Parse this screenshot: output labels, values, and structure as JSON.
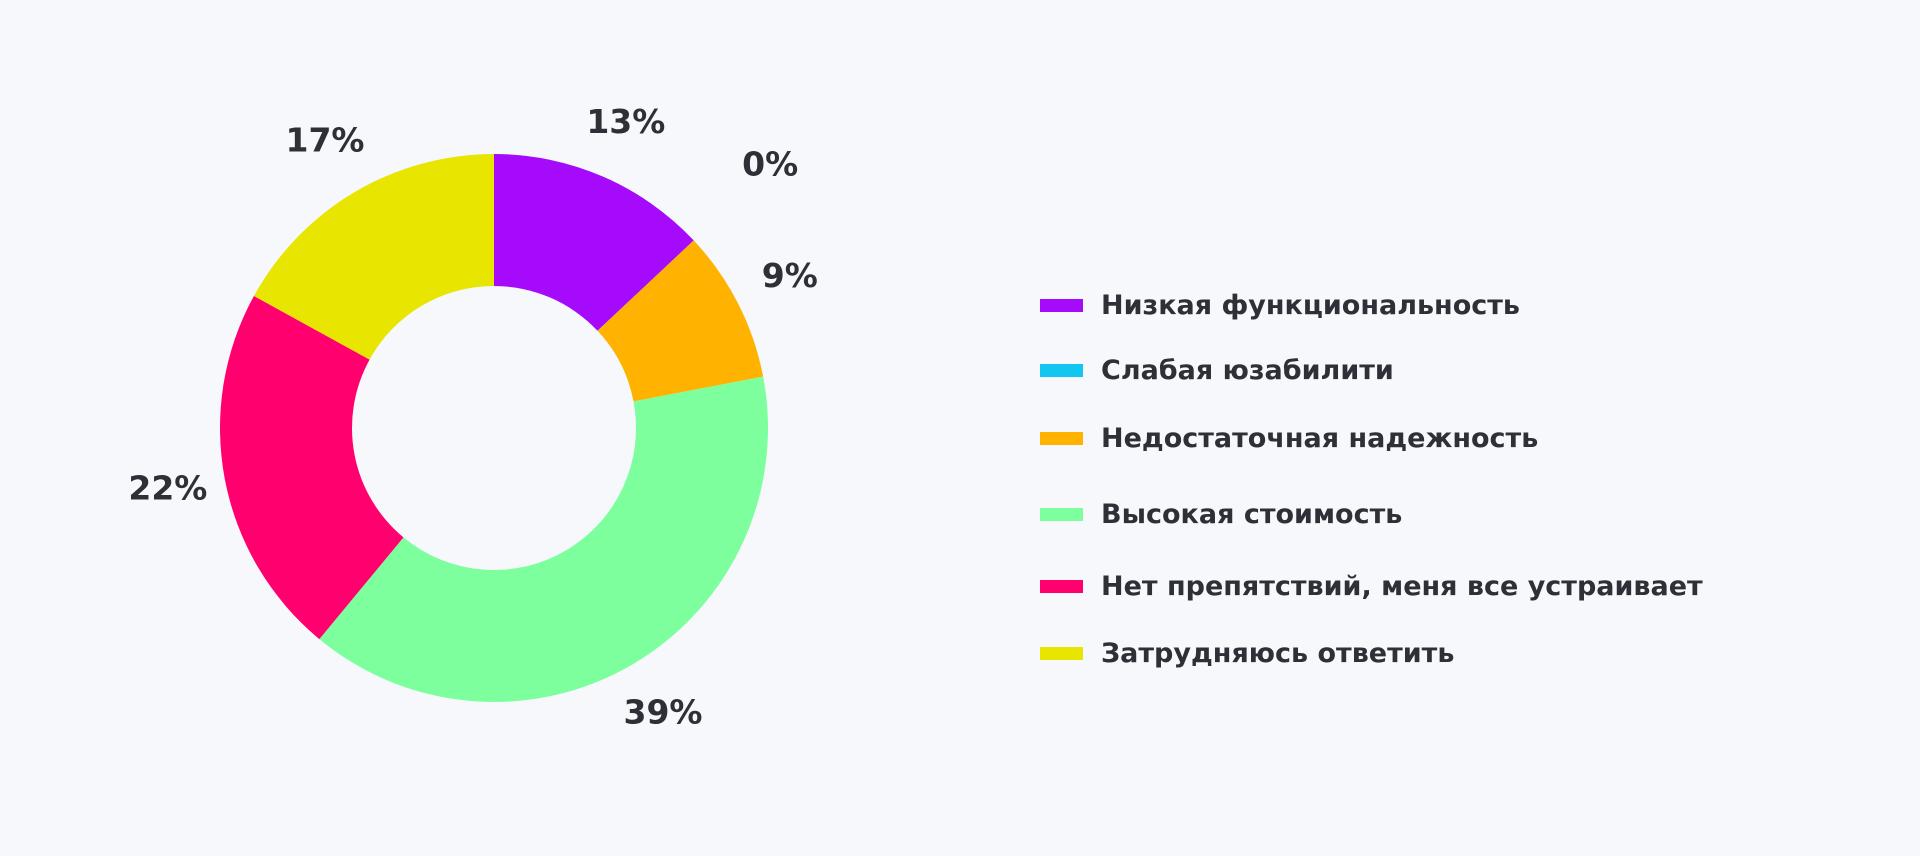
{
  "chart_data": {
    "type": "pie",
    "variant": "donut",
    "categories": [
      "Низкая функциональность",
      "Слабая юзабилити",
      "Недостаточная надежность",
      "Высокая стоимость",
      "Нет препятствий, меня все устраивает",
      "Затрудняюсь ответить"
    ],
    "values": [
      13,
      0,
      9,
      39,
      22,
      17
    ],
    "labels": [
      "13%",
      "0%",
      "9%",
      "39%",
      "22%",
      "17%"
    ],
    "colors": [
      "#a50afa",
      "#13c6f2",
      "#ffb300",
      "#7dff9d",
      "#ff006e",
      "#e8e600"
    ],
    "legend_position": "right",
    "title": ""
  }
}
